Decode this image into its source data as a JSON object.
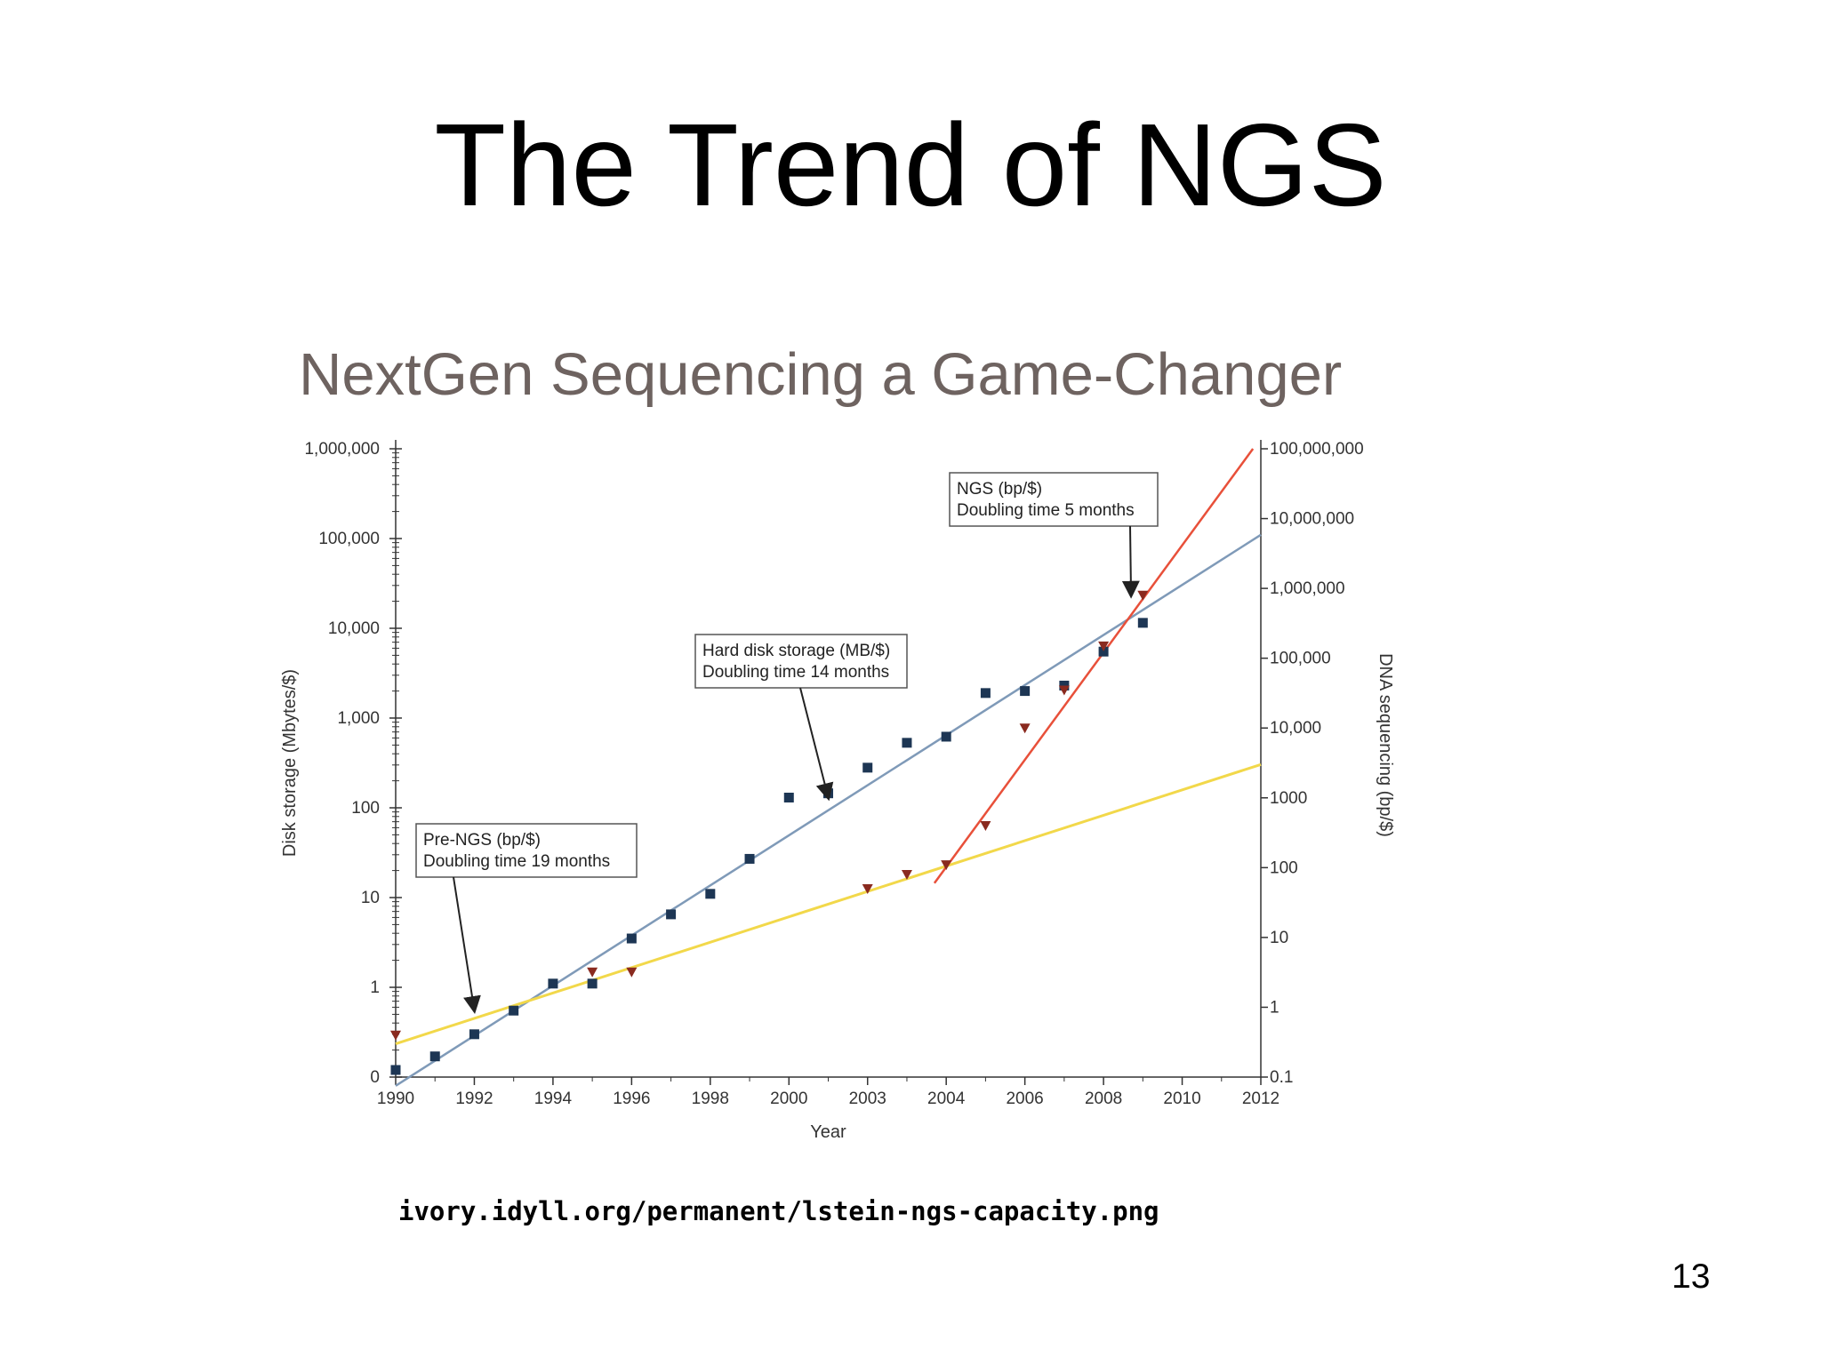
{
  "slide": {
    "title": "The Trend of NGS",
    "source_url": "ivory.idyll.org/permanent/lstein-ngs-capacity.png",
    "page_number": "13"
  },
  "colors": {
    "disk_markers": "#1d3654",
    "disk_line": "#7f9ab8",
    "pre_ngs_line": "#f2d84a",
    "ngs_line": "#e8503a",
    "sequencing_markers": "#8a2a1f",
    "axis": "#333333",
    "figure_title": "#6e6360"
  },
  "chart_data": {
    "type": "scatter",
    "title": "NextGen Sequencing a Game-Changer",
    "xlabel": "Year",
    "ylabel_left": "Disk storage (Mbytes/$)",
    "ylabel_right": "DNA sequencing (bp/$)",
    "x_tick_labels": [
      "1990",
      "1992",
      "1994",
      "1996",
      "1998",
      "2000",
      "2003",
      "2004",
      "2006",
      "2008",
      "2010",
      "2012"
    ],
    "y_left_scale": "log",
    "y_left_tick_labels": [
      "0",
      "1",
      "10",
      "100",
      "1,000",
      "10,000",
      "100,000",
      "1,000,000"
    ],
    "y_left_tick_exponents": [
      -1,
      0,
      1,
      2,
      3,
      4,
      5,
      6
    ],
    "y_right_scale": "log",
    "y_right_tick_labels": [
      "0.1",
      "1",
      "10",
      "100",
      "1000",
      "10,000",
      "100,000",
      "1,000,000",
      "10,000,000",
      "100,000,000"
    ],
    "y_right_tick_exponents": [
      -1,
      0,
      1,
      2,
      3,
      4,
      5,
      6,
      7,
      8
    ],
    "grid": false,
    "series": [
      {
        "name": "Hard disk storage (MB/$)",
        "axis": "left",
        "marker": "square",
        "points": [
          {
            "x": 1990,
            "y": 0.12
          },
          {
            "x": 1991,
            "y": 0.17
          },
          {
            "x": 1992,
            "y": 0.3
          },
          {
            "x": 1993,
            "y": 0.55
          },
          {
            "x": 1994,
            "y": 1.1
          },
          {
            "x": 1995,
            "y": 1.1
          },
          {
            "x": 1996,
            "y": 3.5
          },
          {
            "x": 1997,
            "y": 6.5
          },
          {
            "x": 1998,
            "y": 11
          },
          {
            "x": 1999,
            "y": 27
          },
          {
            "x": 2000,
            "y": 130
          },
          {
            "x": 2001,
            "y": 145
          },
          {
            "x": 2002,
            "y": 280
          },
          {
            "x": 2003,
            "y": 530
          },
          {
            "x": 2004,
            "y": 620
          },
          {
            "x": 2005,
            "y": 1900
          },
          {
            "x": 2006,
            "y": 2000
          },
          {
            "x": 2007,
            "y": 2300
          },
          {
            "x": 2008,
            "y": 5500
          },
          {
            "x": 2009,
            "y": 11500
          }
        ]
      },
      {
        "name": "DNA sequencing (bp/$)",
        "axis": "right",
        "marker": "triangle-down",
        "points": [
          {
            "x": 1990,
            "y": 0.4
          },
          {
            "x": 1995,
            "y": 3.2
          },
          {
            "x": 1996,
            "y": 3.2
          },
          {
            "x": 2002,
            "y": 50
          },
          {
            "x": 2003,
            "y": 80
          },
          {
            "x": 2004,
            "y": 110
          },
          {
            "x": 2005,
            "y": 400
          },
          {
            "x": 2006,
            "y": 10000
          },
          {
            "x": 2007,
            "y": 35000
          },
          {
            "x": 2008,
            "y": 150000
          },
          {
            "x": 2009,
            "y": 800000
          }
        ]
      }
    ],
    "trend_lines": [
      {
        "name": "Hard disk storage (MB/$)",
        "axis": "left",
        "from": {
          "x": 1990,
          "y": 0.08
        },
        "to": {
          "x": 2012,
          "y": 110000
        }
      },
      {
        "name": "Pre-NGS (bp/$)",
        "axis": "right",
        "from": {
          "x": 1990,
          "y": 0.3
        },
        "to": {
          "x": 2012,
          "y": 3000
        }
      },
      {
        "name": "NGS (bp/$)",
        "axis": "right",
        "from": {
          "x": 2003.7,
          "y": 60
        },
        "to": {
          "x": 2011.8,
          "y": 100000000
        }
      }
    ],
    "annotations": [
      {
        "id": "ngs",
        "lines": [
          "NGS (bp/$)",
          "Doubling time 5 months"
        ],
        "arrow_to": {
          "x": 2008.7,
          "y": 800000,
          "axis": "right"
        }
      },
      {
        "id": "disk",
        "lines": [
          "Hard disk storage (MB/$)",
          "Doubling time 14 months"
        ],
        "arrow_to": {
          "x": 2001,
          "y": 130,
          "axis": "left"
        }
      },
      {
        "id": "prengs",
        "lines": [
          "Pre-NGS (bp/$)",
          "Doubling time 19 months"
        ],
        "arrow_to": {
          "x": 1992,
          "y": 0.9,
          "axis": "right"
        }
      }
    ]
  }
}
